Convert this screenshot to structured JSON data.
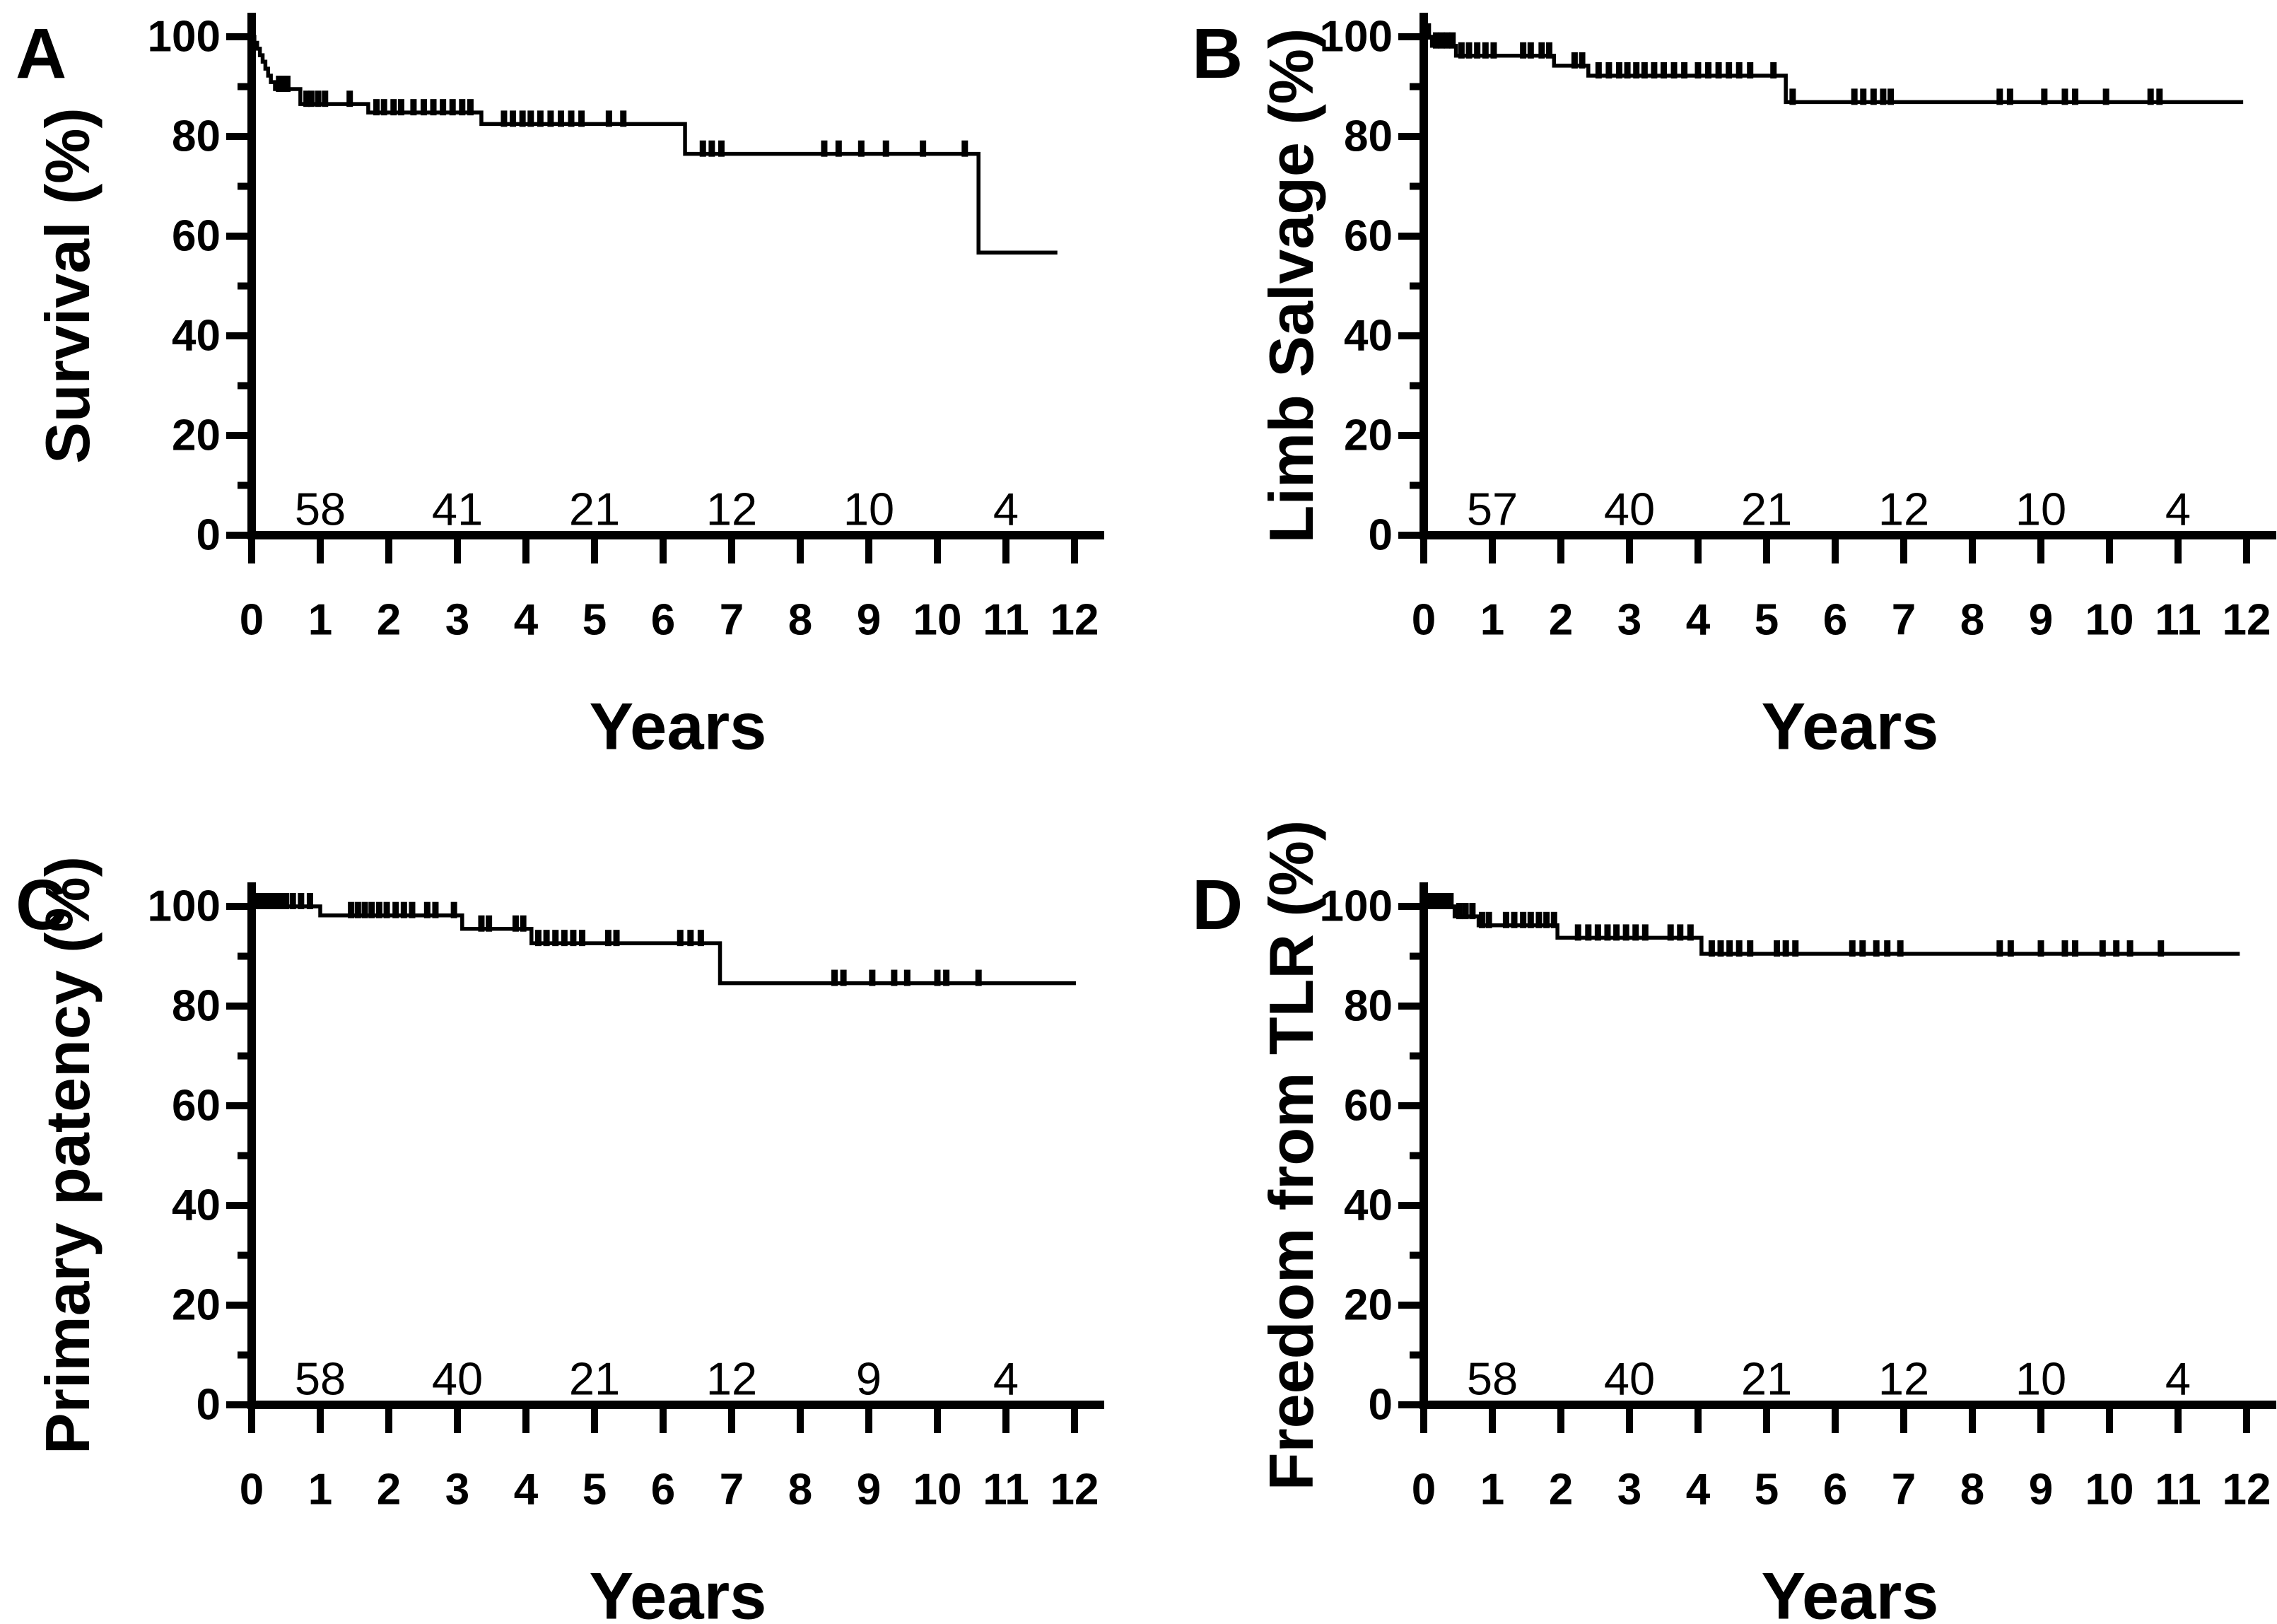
{
  "figure": {
    "foreground_color": "#000000",
    "background_color": "#ffffff"
  },
  "chart_data": [
    {
      "type": "line",
      "subtype": "kaplan-meier-step",
      "panel_label": "A",
      "ylabel": "Survival (%)",
      "xlabel": "Years",
      "xlim": [
        0,
        12
      ],
      "ylim": [
        0,
        100
      ],
      "x_ticks": [
        0,
        1,
        2,
        3,
        4,
        5,
        6,
        7,
        8,
        9,
        10,
        11,
        12
      ],
      "y_ticks_major": [
        0,
        20,
        40,
        60,
        80,
        100
      ],
      "y_ticks_minor": [
        10,
        30,
        50,
        70,
        90
      ],
      "grid": false,
      "legend": false,
      "end_time": 11.75,
      "steps": [
        [
          0,
          100
        ],
        [
          0.04,
          98.8
        ],
        [
          0.08,
          97.6
        ],
        [
          0.12,
          96.3
        ],
        [
          0.16,
          95.0
        ],
        [
          0.2,
          93.6
        ],
        [
          0.24,
          92.2
        ],
        [
          0.28,
          90.9
        ],
        [
          0.34,
          89.5
        ],
        [
          0.71,
          86.5
        ],
        [
          1.7,
          84.8
        ],
        [
          3.35,
          82.5
        ],
        [
          6.32,
          76.5
        ],
        [
          10.6,
          56.7
        ]
      ],
      "censor_marks": [
        [
          0.4,
          89.5
        ],
        [
          0.46,
          89.5
        ],
        [
          0.52,
          89.5
        ],
        [
          0.8,
          86.5
        ],
        [
          0.87,
          86.5
        ],
        [
          0.97,
          86.5
        ],
        [
          1.07,
          86.5
        ],
        [
          1.43,
          86.5
        ],
        [
          1.82,
          84.8
        ],
        [
          1.93,
          84.8
        ],
        [
          2.07,
          84.8
        ],
        [
          2.18,
          84.8
        ],
        [
          2.36,
          84.8
        ],
        [
          2.51,
          84.8
        ],
        [
          2.65,
          84.8
        ],
        [
          2.79,
          84.8
        ],
        [
          2.93,
          84.8
        ],
        [
          3.07,
          84.8
        ],
        [
          3.19,
          84.8
        ],
        [
          3.68,
          82.5
        ],
        [
          3.81,
          82.5
        ],
        [
          3.95,
          82.5
        ],
        [
          4.07,
          82.5
        ],
        [
          4.21,
          82.5
        ],
        [
          4.36,
          82.5
        ],
        [
          4.51,
          82.5
        ],
        [
          4.66,
          82.5
        ],
        [
          4.81,
          82.5
        ],
        [
          5.21,
          82.5
        ],
        [
          5.42,
          82.5
        ],
        [
          6.58,
          76.5
        ],
        [
          6.71,
          76.5
        ],
        [
          6.85,
          76.5
        ],
        [
          8.35,
          76.5
        ],
        [
          8.56,
          76.5
        ],
        [
          8.89,
          76.5
        ],
        [
          9.25,
          76.5
        ],
        [
          9.79,
          76.5
        ],
        [
          10.4,
          76.5
        ]
      ],
      "numbers_at_risk": {
        "times": [
          1,
          3,
          5,
          7,
          9,
          11
        ],
        "counts": [
          58,
          41,
          21,
          12,
          10,
          4
        ]
      }
    },
    {
      "type": "line",
      "subtype": "kaplan-meier-step",
      "panel_label": "B",
      "ylabel": "Limb Salvage (%)",
      "xlabel": "Years",
      "xlim": [
        0,
        12
      ],
      "ylim": [
        0,
        100
      ],
      "x_ticks": [
        0,
        1,
        2,
        3,
        4,
        5,
        6,
        7,
        8,
        9,
        10,
        11,
        12
      ],
      "y_ticks_major": [
        0,
        20,
        40,
        60,
        80,
        100
      ],
      "y_ticks_minor": [
        10,
        30,
        50,
        70,
        90
      ],
      "grid": false,
      "legend": false,
      "end_time": 11.95,
      "steps": [
        [
          0,
          100
        ],
        [
          0.12,
          98.2
        ],
        [
          0.47,
          96.2
        ],
        [
          1.9,
          94.2
        ],
        [
          2.4,
          92.2
        ],
        [
          5.28,
          86.9
        ]
      ],
      "censor_marks": [
        [
          0.06,
          100
        ],
        [
          0.18,
          98.2
        ],
        [
          0.26,
          98.2
        ],
        [
          0.34,
          98.2
        ],
        [
          0.42,
          98.2
        ],
        [
          0.55,
          96.2
        ],
        [
          0.66,
          96.2
        ],
        [
          0.78,
          96.2
        ],
        [
          0.9,
          96.2
        ],
        [
          1.02,
          96.2
        ],
        [
          1.45,
          96.2
        ],
        [
          1.56,
          96.2
        ],
        [
          1.72,
          96.2
        ],
        [
          1.83,
          96.2
        ],
        [
          2.2,
          94.2
        ],
        [
          2.31,
          94.2
        ],
        [
          2.55,
          92.2
        ],
        [
          2.7,
          92.2
        ],
        [
          2.85,
          92.2
        ],
        [
          2.97,
          92.2
        ],
        [
          3.1,
          92.2
        ],
        [
          3.22,
          92.2
        ],
        [
          3.36,
          92.2
        ],
        [
          3.5,
          92.2
        ],
        [
          3.65,
          92.2
        ],
        [
          3.8,
          92.2
        ],
        [
          4.0,
          92.2
        ],
        [
          4.15,
          92.2
        ],
        [
          4.3,
          92.2
        ],
        [
          4.45,
          92.2
        ],
        [
          4.6,
          92.2
        ],
        [
          4.76,
          92.2
        ],
        [
          5.1,
          92.2
        ],
        [
          5.38,
          86.9
        ],
        [
          6.28,
          86.9
        ],
        [
          6.41,
          86.9
        ],
        [
          6.56,
          86.9
        ],
        [
          6.7,
          86.9
        ],
        [
          6.81,
          86.9
        ],
        [
          8.4,
          86.9
        ],
        [
          8.55,
          86.9
        ],
        [
          9.05,
          86.9
        ],
        [
          9.35,
          86.9
        ],
        [
          9.5,
          86.9
        ],
        [
          9.95,
          86.9
        ],
        [
          10.6,
          86.9
        ],
        [
          10.73,
          86.9
        ]
      ],
      "numbers_at_risk": {
        "times": [
          1,
          3,
          5,
          7,
          9,
          11
        ],
        "counts": [
          57,
          40,
          21,
          12,
          10,
          4
        ]
      }
    },
    {
      "type": "line",
      "subtype": "kaplan-meier-step",
      "panel_label": "C",
      "ylabel": "Primary patency (%)",
      "xlabel": "Years",
      "xlim": [
        0,
        12
      ],
      "ylim": [
        0,
        100
      ],
      "x_ticks": [
        0,
        1,
        2,
        3,
        4,
        5,
        6,
        7,
        8,
        9,
        10,
        11,
        12
      ],
      "y_ticks_major": [
        0,
        20,
        40,
        60,
        80,
        100
      ],
      "y_ticks_minor": [
        10,
        30,
        50,
        70,
        90
      ],
      "grid": false,
      "legend": false,
      "end_time": 12.02,
      "steps": [
        [
          0,
          100
        ],
        [
          1.0,
          98.2
        ],
        [
          3.07,
          95.5
        ],
        [
          4.08,
          92.6
        ],
        [
          6.83,
          84.6
        ]
      ],
      "censor_marks": [
        [
          0.1,
          100
        ],
        [
          0.18,
          100
        ],
        [
          0.26,
          100
        ],
        [
          0.34,
          100
        ],
        [
          0.42,
          100
        ],
        [
          0.5,
          100
        ],
        [
          0.6,
          100
        ],
        [
          0.72,
          100
        ],
        [
          0.85,
          100
        ],
        [
          1.45,
          98.2
        ],
        [
          1.55,
          98.2
        ],
        [
          1.65,
          98.2
        ],
        [
          1.75,
          98.2
        ],
        [
          1.86,
          98.2
        ],
        [
          1.97,
          98.2
        ],
        [
          2.1,
          98.2
        ],
        [
          2.22,
          98.2
        ],
        [
          2.34,
          98.2
        ],
        [
          2.56,
          98.2
        ],
        [
          2.68,
          98.2
        ],
        [
          2.95,
          98.2
        ],
        [
          3.35,
          95.5
        ],
        [
          3.46,
          95.5
        ],
        [
          3.85,
          95.5
        ],
        [
          3.96,
          95.5
        ],
        [
          4.18,
          92.6
        ],
        [
          4.3,
          92.6
        ],
        [
          4.43,
          92.6
        ],
        [
          4.56,
          92.6
        ],
        [
          4.69,
          92.6
        ],
        [
          4.82,
          92.6
        ],
        [
          5.2,
          92.6
        ],
        [
          5.32,
          92.6
        ],
        [
          6.25,
          92.6
        ],
        [
          6.4,
          92.6
        ],
        [
          6.55,
          92.6
        ],
        [
          8.5,
          84.6
        ],
        [
          8.63,
          84.6
        ],
        [
          9.05,
          84.6
        ],
        [
          9.37,
          84.6
        ],
        [
          9.56,
          84.6
        ],
        [
          10.0,
          84.6
        ],
        [
          10.13,
          84.6
        ],
        [
          10.6,
          84.6
        ]
      ],
      "numbers_at_risk": {
        "times": [
          1,
          3,
          5,
          7,
          9,
          11
        ],
        "counts": [
          58,
          40,
          21,
          12,
          9,
          4
        ]
      }
    },
    {
      "type": "line",
      "subtype": "kaplan-meier-step",
      "panel_label": "D",
      "ylabel": "Freedom from TLR (%)",
      "xlabel": "Years",
      "xlim": [
        0,
        12
      ],
      "ylim": [
        0,
        100
      ],
      "x_ticks": [
        0,
        1,
        2,
        3,
        4,
        5,
        6,
        7,
        8,
        9,
        10,
        11,
        12
      ],
      "y_ticks_major": [
        0,
        20,
        40,
        60,
        80,
        100
      ],
      "y_ticks_minor": [
        10,
        30,
        50,
        70,
        90
      ],
      "grid": false,
      "legend": false,
      "end_time": 11.9,
      "steps": [
        [
          0,
          100
        ],
        [
          0.45,
          98.0
        ],
        [
          0.8,
          96.2
        ],
        [
          1.95,
          93.7
        ],
        [
          4.05,
          90.5
        ]
      ],
      "censor_marks": [
        [
          0.07,
          100
        ],
        [
          0.15,
          100
        ],
        [
          0.23,
          100
        ],
        [
          0.31,
          100
        ],
        [
          0.39,
          100
        ],
        [
          0.52,
          98.0
        ],
        [
          0.61,
          98.0
        ],
        [
          0.71,
          98.0
        ],
        [
          0.85,
          96.2
        ],
        [
          0.95,
          96.2
        ],
        [
          1.2,
          96.2
        ],
        [
          1.32,
          96.2
        ],
        [
          1.45,
          96.2
        ],
        [
          1.56,
          96.2
        ],
        [
          1.68,
          96.2
        ],
        [
          1.79,
          96.2
        ],
        [
          1.9,
          96.2
        ],
        [
          2.25,
          93.7
        ],
        [
          2.4,
          93.7
        ],
        [
          2.54,
          93.7
        ],
        [
          2.68,
          93.7
        ],
        [
          2.81,
          93.7
        ],
        [
          2.95,
          93.7
        ],
        [
          3.09,
          93.7
        ],
        [
          3.23,
          93.7
        ],
        [
          3.6,
          93.7
        ],
        [
          3.74,
          93.7
        ],
        [
          3.89,
          93.7
        ],
        [
          4.2,
          90.5
        ],
        [
          4.33,
          90.5
        ],
        [
          4.46,
          90.5
        ],
        [
          4.6,
          90.5
        ],
        [
          4.76,
          90.5
        ],
        [
          5.15,
          90.5
        ],
        [
          5.28,
          90.5
        ],
        [
          5.42,
          90.5
        ],
        [
          6.25,
          90.5
        ],
        [
          6.4,
          90.5
        ],
        [
          6.6,
          90.5
        ],
        [
          6.76,
          90.5
        ],
        [
          6.95,
          90.5
        ],
        [
          8.4,
          90.5
        ],
        [
          8.56,
          90.5
        ],
        [
          9.0,
          90.5
        ],
        [
          9.35,
          90.5
        ],
        [
          9.5,
          90.5
        ],
        [
          9.9,
          90.5
        ],
        [
          10.1,
          90.5
        ],
        [
          10.3,
          90.5
        ],
        [
          10.75,
          90.5
        ]
      ],
      "numbers_at_risk": {
        "times": [
          1,
          3,
          5,
          7,
          9,
          11
        ],
        "counts": [
          58,
          40,
          21,
          12,
          10,
          4
        ]
      }
    }
  ]
}
